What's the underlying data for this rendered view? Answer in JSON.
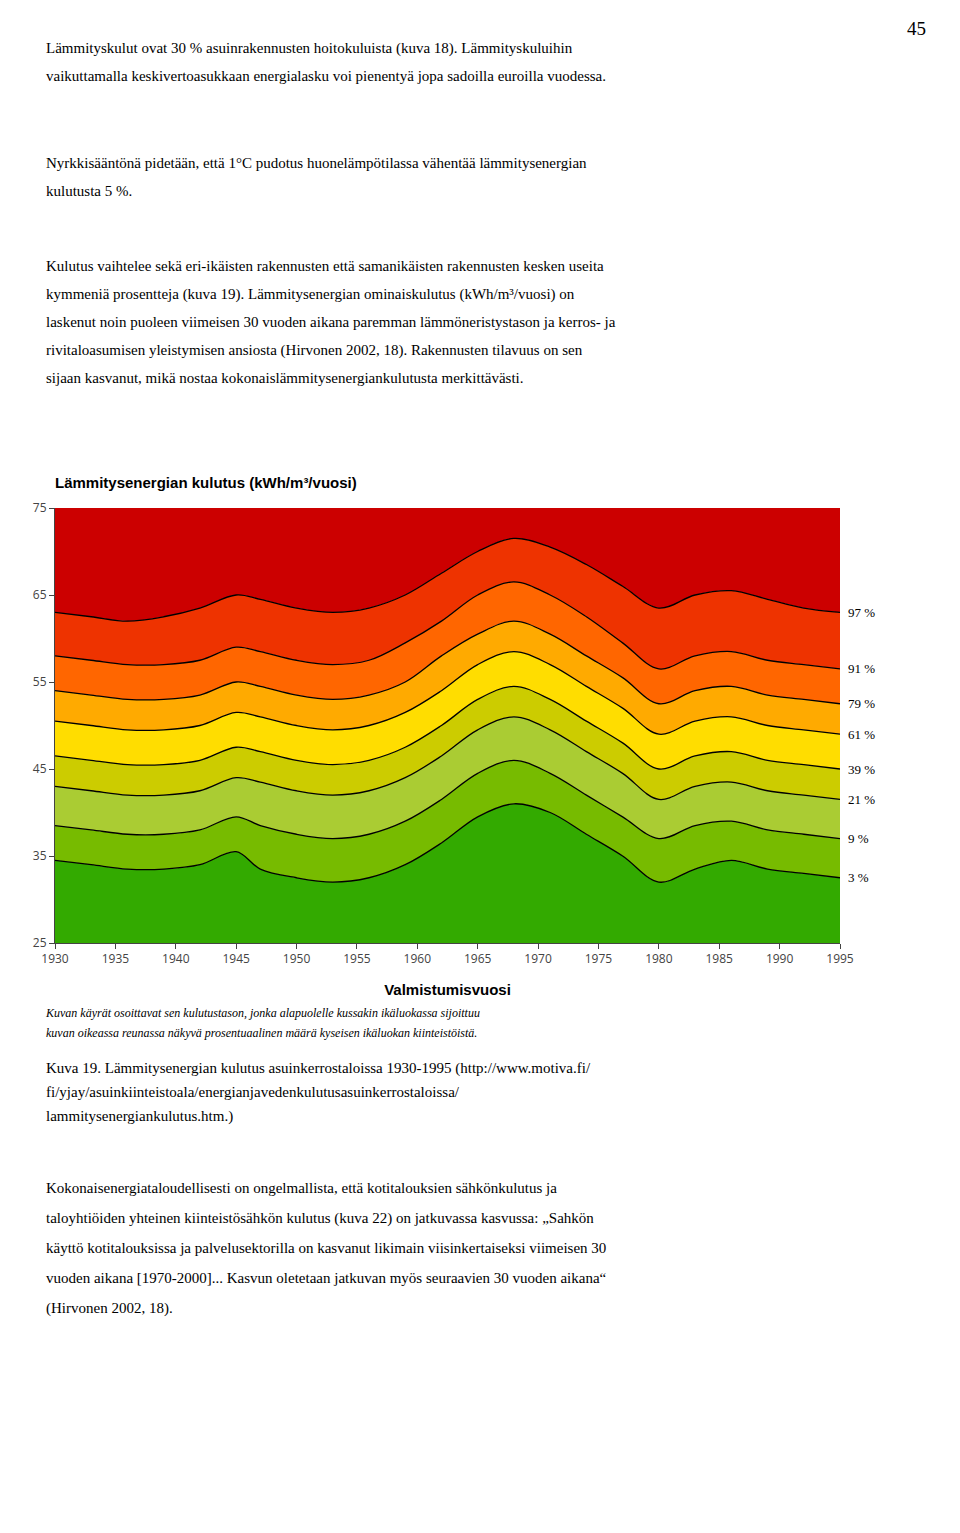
{
  "page_number": "45",
  "text_above": [
    [
      "Lämmityskulut ovat 30 % asuinrakennusten hoitokuluista (kuva 18). Lämmityskuluihin",
      "vaikuttamalla keskivertoasukkaan energialasku voi pienentyä jopa sadoilla euroilla vuodessa."
    ],
    [
      "Nyrkkisääntönä pidetään, että 1°C pudotus huonelämpötilassa vähentää lämmitysenergian",
      "kulutusta 5 %."
    ],
    [
      "Kulutus vaihtelee sekä eri-ikäisten rakennusten että samanikäisten rakennusten kesken useita",
      "kymmeniä prosentteja (kuva 19). Lämmitysenergian ominaiskulutus (kWh/m³/vuosi) on",
      "laskenut noin puoleen viimeisen 30 vuoden aikana paremman lämmöneristystason ja kerros- ja",
      "rivitaloasumisen yleistymisen ansiosta (Hirvonen 2002, 18). Rakennusten tilavuus on sen",
      "sijaan kasvanut, mikä nostaa kokonaislämmitysenergiankulutusta merkittävästi."
    ]
  ],
  "caption": [
    "Kuvan käyrät osoittavat sen kulutustason, jonka alapuolelle kussakin ikäluokassa sijoittuu",
    "kuvan oikeassa reunassa näkyvä prosentuaalinen määrä kyseisen ikäluokan kiinteistöistä."
  ],
  "figure_caption": [
    "Kuva 19. Lämmitysenergian kulutus asuinkerrostaloissa 1930-1995 (http://www.motiva.fi/",
    "fi/yjay/asuinkiinteistoala/energianjavedenkulutusasuinkerrostaloissa/",
    "lammitysenergiankulutus.htm.)"
  ],
  "text_below": [
    "Kokonaisenergiataloudellisesti on ongelmallista, että kotitalouksien sähkönkulutus ja",
    "taloyhtiöiden yhteinen kiinteistösähkön kulutus (kuva 22) on jatkuvassa kasvussa: „Sahkön",
    "käyttö kotitalouksissa ja palvelusektorilla on kasvanut likimain viisinkertaiseksi viimeisen 30",
    "vuoden aikana [1970-2000]... Kasvun oletetaan jatkuvan myös seuraavien 30 vuoden aikana“",
    "(Hirvonen 2002, 18)."
  ],
  "chart_data": {
    "type": "area",
    "title": "Lämmitysenergian kulutus (kWh/m³/vuosi)",
    "xlabel": "Valmistumisvuosi",
    "x": [
      1930,
      1933,
      1936,
      1939,
      1942,
      1945,
      1947,
      1950,
      1953,
      1956,
      1959,
      1962,
      1965,
      1968,
      1971,
      1974,
      1977,
      1980,
      1983,
      1986,
      1989,
      1992,
      1995
    ],
    "series": [
      {
        "name": "97 %",
        "color": "#000000",
        "values": [
          63.0,
          62.5,
          62.0,
          62.5,
          63.5,
          65.0,
          64.5,
          63.5,
          63.0,
          63.5,
          65.0,
          67.5,
          70.0,
          71.5,
          70.5,
          68.5,
          66.0,
          63.5,
          65.0,
          65.5,
          64.5,
          63.5,
          63.0
        ]
      },
      {
        "name": "91 %",
        "color": "#000000",
        "values": [
          58.0,
          57.5,
          57.0,
          57.0,
          57.5,
          59.0,
          58.5,
          57.5,
          57.0,
          57.5,
          59.5,
          62.0,
          65.0,
          66.5,
          65.0,
          62.5,
          59.5,
          56.5,
          58.0,
          58.5,
          57.5,
          57.0,
          56.5
        ]
      },
      {
        "name": "79 %",
        "color": "#000000",
        "values": [
          54.0,
          53.5,
          53.0,
          53.0,
          53.5,
          55.0,
          54.5,
          53.5,
          53.0,
          53.5,
          55.0,
          58.0,
          60.5,
          62.0,
          60.5,
          58.0,
          55.5,
          52.5,
          54.0,
          54.5,
          53.5,
          53.0,
          52.5
        ]
      },
      {
        "name": "61 %",
        "color": "#000000",
        "values": [
          50.5,
          50.0,
          49.5,
          49.5,
          50.0,
          51.5,
          51.0,
          50.0,
          49.5,
          50.0,
          51.5,
          54.0,
          57.0,
          58.5,
          57.0,
          54.5,
          52.0,
          49.0,
          50.5,
          51.0,
          50.0,
          49.5,
          49.0
        ]
      },
      {
        "name": "39 %",
        "color": "#000000",
        "values": [
          46.5,
          46.0,
          45.5,
          45.5,
          46.0,
          47.5,
          47.0,
          46.0,
          45.5,
          46.0,
          47.5,
          50.0,
          53.0,
          54.5,
          53.0,
          50.5,
          48.0,
          45.0,
          46.5,
          47.0,
          46.0,
          45.5,
          45.0
        ]
      },
      {
        "name": "21 %",
        "color": "#000000",
        "values": [
          43.0,
          42.5,
          42.0,
          42.0,
          42.5,
          44.0,
          43.5,
          42.5,
          42.0,
          42.5,
          44.0,
          46.5,
          49.5,
          51.0,
          49.5,
          47.0,
          44.5,
          41.5,
          43.0,
          43.5,
          42.5,
          42.0,
          41.5
        ]
      },
      {
        "name": "9 %",
        "color": "#000000",
        "values": [
          38.5,
          38.0,
          37.5,
          37.5,
          38.0,
          39.5,
          38.5,
          37.5,
          37.0,
          37.5,
          39.0,
          41.5,
          44.5,
          46.0,
          44.5,
          42.0,
          39.5,
          37.0,
          38.5,
          39.0,
          38.0,
          37.5,
          37.0
        ]
      },
      {
        "name": "3 %",
        "color": "#000000",
        "values": [
          34.5,
          34.0,
          33.5,
          33.5,
          34.0,
          35.5,
          33.5,
          32.5,
          32.0,
          32.5,
          34.0,
          36.5,
          39.5,
          41.0,
          40.0,
          37.5,
          35.0,
          32.0,
          33.5,
          34.5,
          33.5,
          33.0,
          32.5
        ]
      }
    ],
    "colors": [
      "#CC0000",
      "#EE3300",
      "#FF6600",
      "#FFAA00",
      "#FFDD00",
      "#CCCC00",
      "#AACC33",
      "#77BB00",
      "#33AA00"
    ],
    "xlim": [
      1930,
      1995
    ],
    "ylim": [
      25,
      75
    ],
    "xticks": [
      1930,
      1935,
      1940,
      1945,
      1950,
      1955,
      1960,
      1965,
      1970,
      1975,
      1980,
      1985,
      1990,
      1995
    ],
    "yticks": [
      25,
      35,
      45,
      55,
      65,
      75
    ],
    "grid": false
  }
}
